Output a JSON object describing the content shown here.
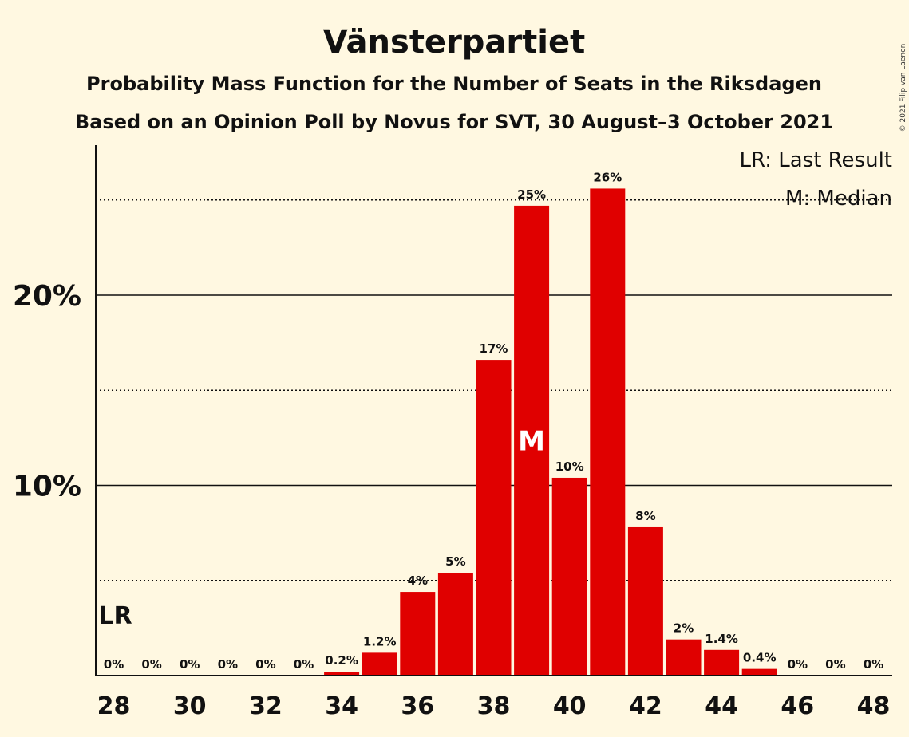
{
  "chart_data": {
    "type": "bar",
    "title": "Vänsterpartiet",
    "subtitle": "Probability Mass Function for the Number of Seats in the Riksdagen",
    "subtitle2": "Based on an Opinion Poll by Novus for SVT, 30 August–3 October 2021",
    "copyright": "© 2021 Filip van Laenen",
    "categories": [
      28,
      29,
      30,
      31,
      32,
      33,
      34,
      35,
      36,
      37,
      38,
      39,
      40,
      41,
      42,
      43,
      44,
      45,
      46,
      47,
      48
    ],
    "values": [
      0,
      0,
      0,
      0,
      0,
      0,
      0.2,
      1.2,
      4.4,
      5.4,
      16.6,
      24.7,
      10.4,
      25.6,
      7.8,
      1.9,
      1.35,
      0.35,
      0,
      0,
      0
    ],
    "labels": [
      "0%",
      "0%",
      "0%",
      "0%",
      "0%",
      "0%",
      "0.2%",
      "1.2%",
      "4%",
      "5%",
      "17%",
      "25%",
      "10%",
      "26%",
      "8%",
      "2%",
      "1.4%",
      "0.4%",
      "0%",
      "0%",
      "0%"
    ],
    "xticks": [
      "28",
      "30",
      "32",
      "34",
      "36",
      "38",
      "40",
      "42",
      "44",
      "46",
      "48"
    ],
    "yticks": [
      "10%",
      "20%"
    ],
    "ytick_values": [
      10,
      20
    ],
    "dotted_gridlines": [
      5,
      15,
      25
    ],
    "ylim": [
      0,
      27.9
    ],
    "last_result": {
      "seat": 28,
      "label": "LR"
    },
    "median": {
      "seat": 39,
      "label": "M"
    },
    "legend": [
      "LR: Last Result",
      "M: Median"
    ],
    "colors": {
      "bar": "#e00000",
      "background": "#fff8e1",
      "text": "#111111"
    }
  }
}
